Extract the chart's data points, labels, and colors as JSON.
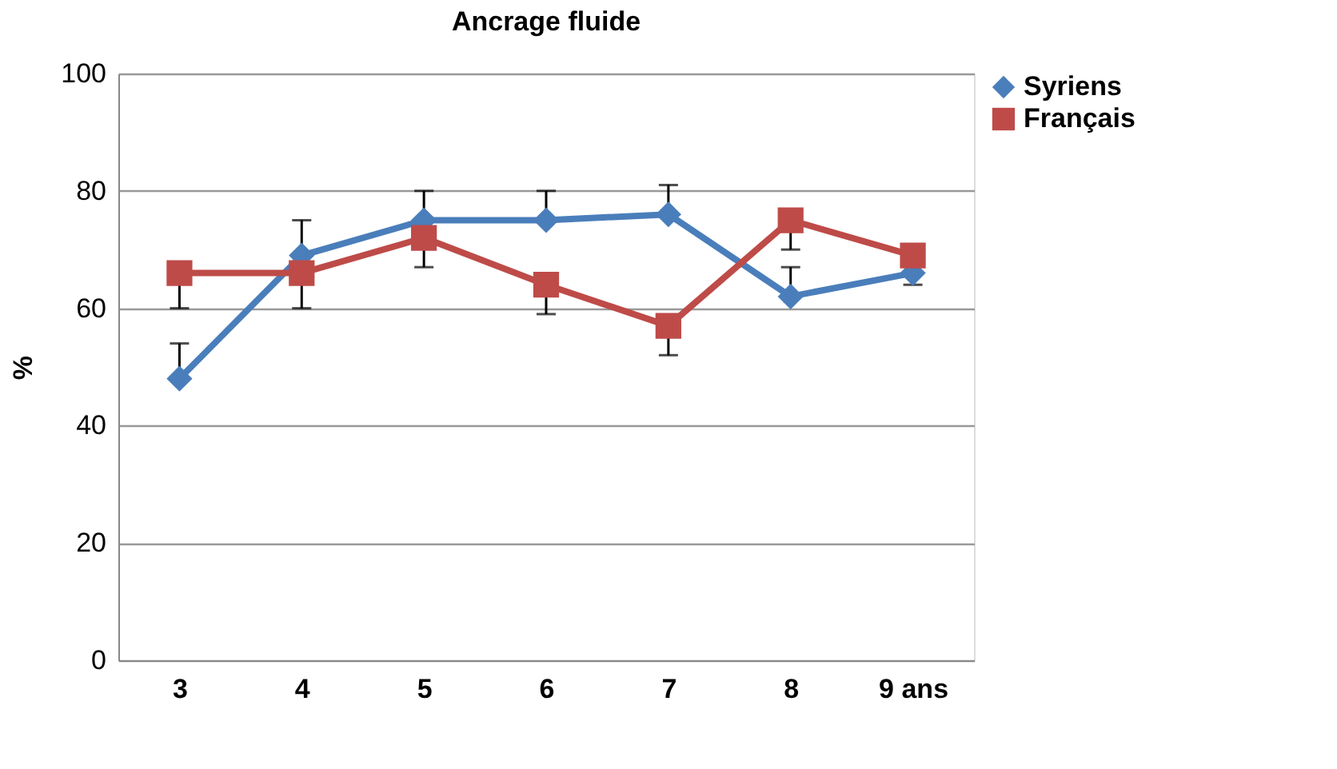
{
  "chart_data": {
    "type": "line",
    "title": "Ancrage fluide",
    "ylabel": "%",
    "categories": [
      "3",
      "4",
      "5",
      "6",
      "7",
      "8",
      "9 ans"
    ],
    "series": [
      {
        "name": "Syriens",
        "color": "#4a7ebb",
        "marker": "diamond",
        "values": [
          48,
          69,
          75,
          75,
          76,
          62,
          66
        ],
        "errors": [
          [
            48,
            54
          ],
          [
            69,
            75
          ],
          [
            75,
            80
          ],
          [
            75,
            80
          ],
          [
            76,
            81
          ],
          [
            62,
            67
          ],
          null
        ]
      },
      {
        "name": "Français",
        "color": "#be4b48",
        "marker": "square",
        "values": [
          66,
          66,
          72,
          64,
          57,
          75,
          69
        ],
        "errors": [
          [
            60,
            66
          ],
          [
            60,
            66
          ],
          [
            67,
            72
          ],
          [
            59,
            64
          ],
          [
            52,
            57
          ],
          [
            70,
            75
          ],
          [
            64,
            69
          ]
        ]
      }
    ],
    "ylim": [
      0,
      100
    ],
    "yticks": [
      0,
      20,
      40,
      60,
      80,
      100
    ],
    "grid": "y",
    "legend": "right",
    "line_style": "solid"
  }
}
